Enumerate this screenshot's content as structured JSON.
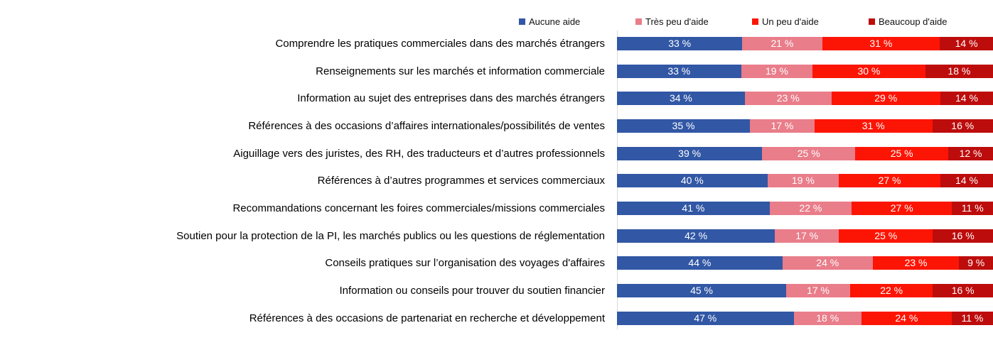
{
  "legend": [
    {
      "label": "Aucune aide",
      "color": "#3157A5"
    },
    {
      "label": "Très peu d'aide",
      "color": "#E97D8A"
    },
    {
      "label": "Un peu d'aide",
      "color": "#FC1505"
    },
    {
      "label": "Beaucoup d'aide",
      "color": "#BD0C0C"
    }
  ],
  "chart_data": {
    "type": "bar",
    "orientation": "horizontal",
    "stacked": true,
    "normalized_to_100": true,
    "unit": "%",
    "value_label_format": "{value} %",
    "legend_position": "top",
    "grid": false,
    "axis_line_color": "#d9d9d9",
    "categories": [
      "Comprendre les pratiques commerciales dans des marchés étrangers",
      "Renseignements sur les marchés et information commerciale",
      "Information au sujet des entreprises dans des marchés étrangers",
      "Références à des occasions d’affaires internationales/possibilités  de ventes",
      "Aiguillage vers des juristes, des RH, des traducteurs et d’autres professionnels",
      "Références à d’autres programmes et services commerciaux",
      "Recommandations concernant les foires commerciales/missions commerciales",
      "Soutien pour la protection de la PI, les marchés publics ou les questions de réglementation",
      "Conseils pratiques sur l’organisation des voyages d'affaires",
      "Information ou conseils pour trouver du soutien financier",
      "Références à des occasions de partenariat en recherche et développement"
    ],
    "series": [
      {
        "name": "Aucune aide",
        "color": "#3157A5",
        "values": [
          33,
          33,
          34,
          35,
          39,
          40,
          41,
          42,
          44,
          45,
          47
        ]
      },
      {
        "name": "Très peu d'aide",
        "color": "#E97D8A",
        "values": [
          21,
          19,
          23,
          17,
          25,
          19,
          22,
          17,
          24,
          17,
          18
        ]
      },
      {
        "name": "Un peu d'aide",
        "color": "#FC1505",
        "values": [
          31,
          30,
          29,
          31,
          25,
          27,
          27,
          25,
          23,
          22,
          24
        ]
      },
      {
        "name": "Beaucoup d'aide",
        "color": "#BD0C0C",
        "values": [
          14,
          18,
          14,
          16,
          12,
          14,
          11,
          16,
          9,
          16,
          11
        ]
      }
    ]
  }
}
